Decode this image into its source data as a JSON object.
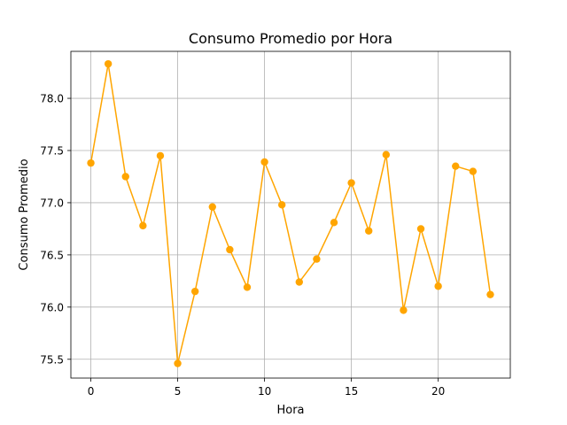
{
  "chart_data": {
    "type": "line",
    "title": "Consumo Promedio por Hora",
    "xlabel": "Hora",
    "ylabel": "Consumo Promedio",
    "xlim": [
      -1.15,
      24.15
    ],
    "ylim": [
      75.32,
      78.45
    ],
    "xticks": [
      0,
      5,
      10,
      15,
      20
    ],
    "yticks": [
      75.5,
      76.0,
      76.5,
      77.0,
      77.5,
      78.0
    ],
    "ytick_labels": [
      "75.5",
      "76.0",
      "76.5",
      "77.0",
      "77.5",
      "78.0"
    ],
    "grid": true,
    "color": "#ffa500",
    "marker": "circle",
    "x": [
      0,
      1,
      2,
      3,
      4,
      5,
      6,
      7,
      8,
      9,
      10,
      11,
      12,
      13,
      14,
      15,
      16,
      17,
      18,
      19,
      20,
      21,
      22,
      23
    ],
    "values": [
      77.38,
      78.33,
      77.25,
      76.78,
      77.45,
      75.46,
      76.15,
      76.96,
      76.55,
      76.19,
      77.39,
      76.98,
      76.24,
      76.46,
      76.81,
      77.19,
      76.73,
      77.46,
      75.97,
      76.75,
      76.2,
      77.35,
      77.3,
      76.12
    ]
  }
}
